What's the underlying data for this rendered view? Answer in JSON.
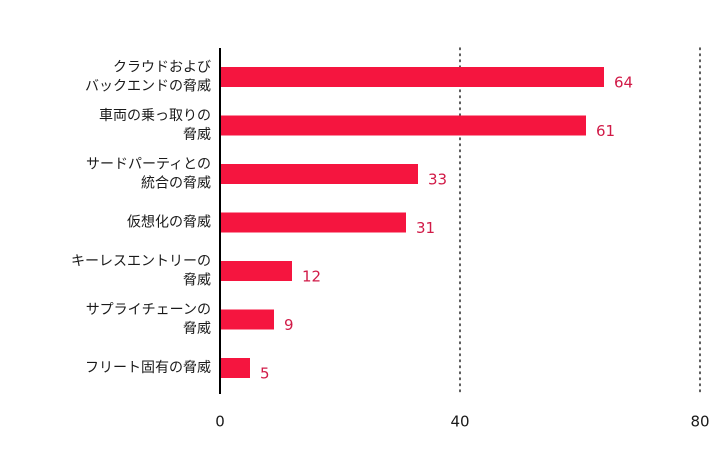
{
  "chart_data": {
    "type": "bar",
    "orientation": "horizontal",
    "categories": [
      [
        "クラウドおよび",
        "バックエンドの脅威"
      ],
      [
        "車両の乗っ取りの",
        "脅威"
      ],
      [
        "サードパーティとの",
        "統合の脅威"
      ],
      [
        "仮想化の脅威"
      ],
      [
        "キーレスエントリーの",
        "脅威"
      ],
      [
        "サプライチェーンの",
        "脅威"
      ],
      [
        "フリート固有の脅威"
      ]
    ],
    "values": [
      64,
      61,
      33,
      31,
      12,
      9,
      5
    ],
    "xlim": [
      0,
      80
    ],
    "xticks": [
      0,
      40,
      80
    ],
    "gridlines": [
      40,
      80
    ],
    "grid_style": "dotted",
    "legend": "none",
    "colors": {
      "bar": "#f5153f",
      "value_label": "#d11a47",
      "axis": "#000000",
      "grid": "#333333"
    }
  }
}
